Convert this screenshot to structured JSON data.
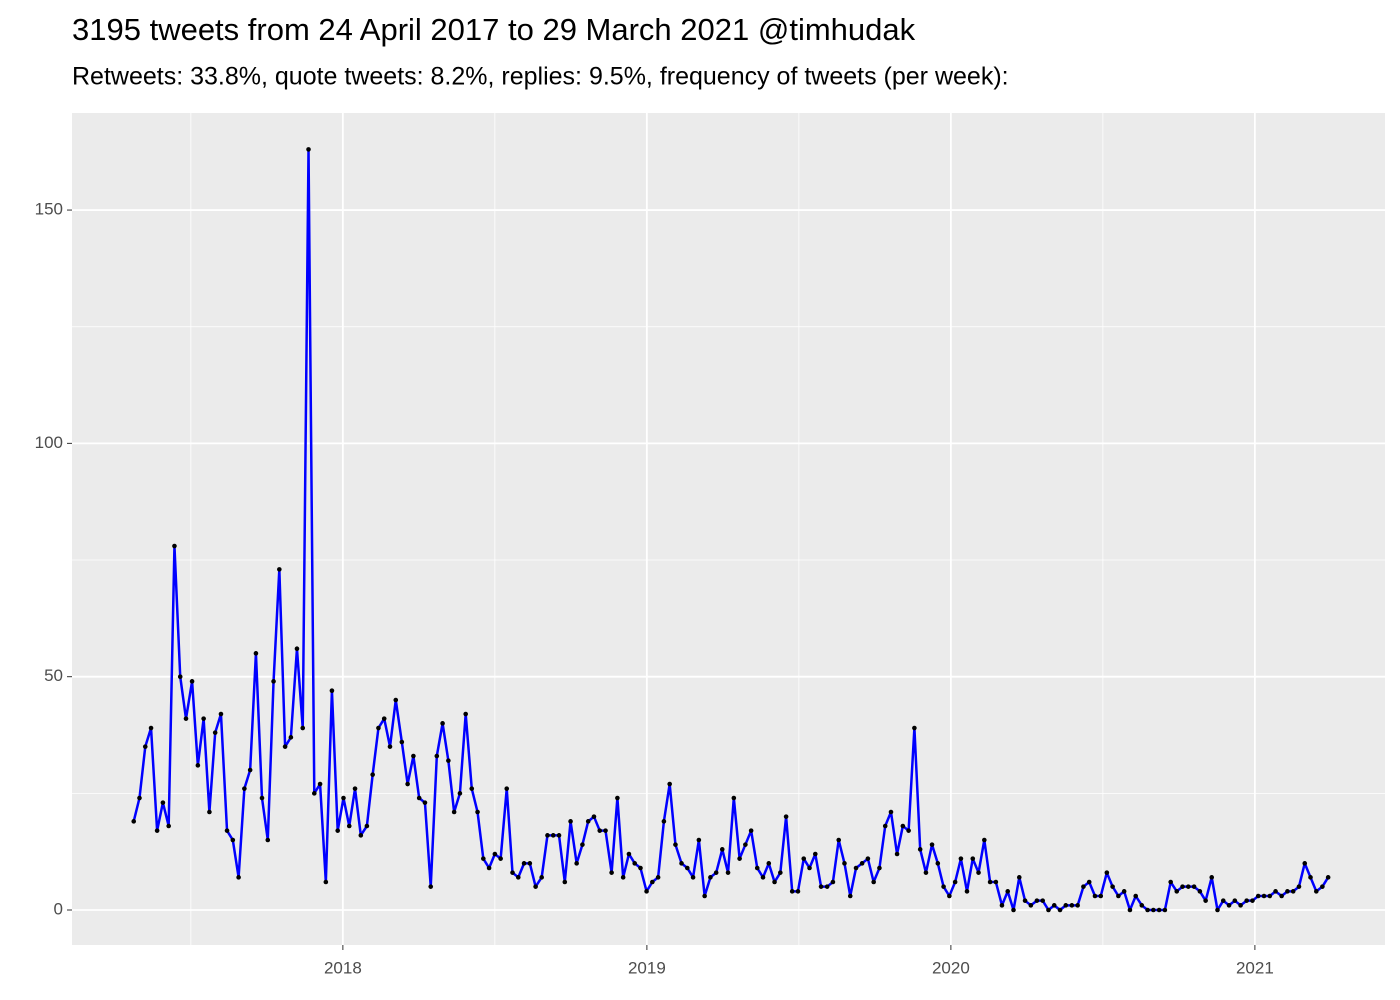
{
  "chart_data": {
    "type": "line",
    "title": "3195 tweets from 24 April 2017 to 29 March 2021 @timhudak",
    "subtitle": "Retweets: 33.8%, quote tweets: 8.2%, replies: 9.5%, frequency of tweets (per week):",
    "x": [
      2017.312,
      2017.331,
      2017.35,
      2017.369,
      2017.389,
      2017.408,
      2017.427,
      2017.446,
      2017.465,
      2017.484,
      2017.504,
      2017.523,
      2017.542,
      2017.561,
      2017.58,
      2017.599,
      2017.619,
      2017.638,
      2017.657,
      2017.676,
      2017.695,
      2017.714,
      2017.734,
      2017.753,
      2017.772,
      2017.791,
      2017.81,
      2017.829,
      2017.849,
      2017.868,
      2017.887,
      2017.906,
      2017.925,
      2017.944,
      2017.964,
      2017.983,
      2018.002,
      2018.021,
      2018.04,
      2018.059,
      2018.079,
      2018.098,
      2018.117,
      2018.136,
      2018.155,
      2018.174,
      2018.194,
      2018.213,
      2018.232,
      2018.251,
      2018.27,
      2018.289,
      2018.309,
      2018.328,
      2018.347,
      2018.366,
      2018.385,
      2018.404,
      2018.424,
      2018.443,
      2018.462,
      2018.481,
      2018.5,
      2018.519,
      2018.539,
      2018.558,
      2018.577,
      2018.596,
      2018.615,
      2018.634,
      2018.654,
      2018.673,
      2018.692,
      2018.711,
      2018.73,
      2018.749,
      2018.769,
      2018.788,
      2018.807,
      2018.826,
      2018.845,
      2018.864,
      2018.884,
      2018.903,
      2018.922,
      2018.941,
      2018.96,
      2018.979,
      2018.999,
      2019.018,
      2019.037,
      2019.056,
      2019.075,
      2019.094,
      2019.114,
      2019.133,
      2019.152,
      2019.171,
      2019.19,
      2019.209,
      2019.228,
      2019.248,
      2019.267,
      2019.286,
      2019.305,
      2019.324,
      2019.343,
      2019.363,
      2019.382,
      2019.401,
      2019.42,
      2019.439,
      2019.458,
      2019.478,
      2019.497,
      2019.516,
      2019.535,
      2019.554,
      2019.573,
      2019.593,
      2019.612,
      2019.631,
      2019.65,
      2019.669,
      2019.688,
      2019.708,
      2019.727,
      2019.746,
      2019.765,
      2019.784,
      2019.803,
      2019.823,
      2019.842,
      2019.861,
      2019.88,
      2019.899,
      2019.918,
      2019.938,
      2019.957,
      2019.976,
      2019.995,
      2020.014,
      2020.033,
      2020.053,
      2020.072,
      2020.091,
      2020.11,
      2020.129,
      2020.148,
      2020.168,
      2020.187,
      2020.206,
      2020.225,
      2020.244,
      2020.263,
      2020.283,
      2020.302,
      2020.321,
      2020.34,
      2020.359,
      2020.378,
      2020.398,
      2020.417,
      2020.436,
      2020.455,
      2020.474,
      2020.493,
      2020.513,
      2020.532,
      2020.551,
      2020.57,
      2020.589,
      2020.608,
      2020.628,
      2020.647,
      2020.666,
      2020.685,
      2020.704,
      2020.723,
      2020.743,
      2020.762,
      2020.781,
      2020.8,
      2020.819,
      2020.838,
      2020.858,
      2020.877,
      2020.896,
      2020.915,
      2020.934,
      2020.953,
      2020.973,
      2020.992,
      2021.011,
      2021.03,
      2021.049,
      2021.068,
      2021.088,
      2021.107,
      2021.126,
      2021.145,
      2021.164,
      2021.183,
      2021.202,
      2021.222,
      2021.241
    ],
    "values": [
      19,
      24,
      35,
      39,
      17,
      23,
      18,
      78,
      50,
      41,
      49,
      31,
      41,
      21,
      38,
      42,
      17,
      15,
      7,
      26,
      30,
      55,
      24,
      15,
      49,
      73,
      35,
      37,
      56,
      39,
      163,
      25,
      27,
      6,
      47,
      17,
      24,
      18,
      26,
      16,
      18,
      29,
      39,
      41,
      35,
      45,
      36,
      27,
      33,
      24,
      23,
      5,
      33,
      40,
      32,
      21,
      25,
      42,
      26,
      21,
      11,
      9,
      12,
      11,
      26,
      8,
      7,
      10,
      10,
      5,
      7,
      16,
      16,
      16,
      6,
      19,
      10,
      14,
      19,
      20,
      17,
      17,
      8,
      24,
      7,
      12,
      10,
      9,
      4,
      6,
      7,
      19,
      27,
      14,
      10,
      9,
      7,
      15,
      3,
      7,
      8,
      13,
      8,
      24,
      11,
      14,
      17,
      9,
      7,
      10,
      6,
      8,
      20,
      4,
      4,
      11,
      9,
      12,
      5,
      5,
      6,
      15,
      10,
      3,
      9,
      10,
      11,
      6,
      9,
      18,
      21,
      12,
      18,
      17,
      39,
      13,
      8,
      14,
      10,
      5,
      3,
      6,
      11,
      4,
      11,
      8,
      15,
      6,
      6,
      1,
      4,
      0,
      7,
      2,
      1,
      2,
      2,
      0,
      1,
      0,
      1,
      1,
      1,
      5,
      6,
      3,
      3,
      8,
      5,
      3,
      4,
      0,
      3,
      1,
      0,
      0,
      0,
      0,
      6,
      4,
      5,
      5,
      5,
      4,
      2,
      7,
      0,
      2,
      1,
      2,
      1,
      2,
      2,
      3,
      3,
      3,
      4,
      3,
      4,
      4,
      5,
      10,
      7,
      4,
      5,
      7
    ],
    "color": "#0000ff",
    "marker_color": "#000000",
    "xlim": [
      2017.109,
      2021.428
    ],
    "xticks": [
      2018,
      2019,
      2020,
      2021
    ],
    "ylim": [
      -7.5,
      170.8
    ],
    "yticks": [
      0,
      50,
      100,
      150
    ],
    "grid": true
  }
}
